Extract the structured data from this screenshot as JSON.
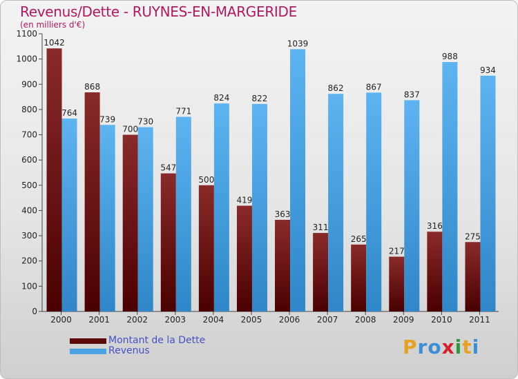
{
  "chart_data": {
    "type": "bar",
    "title": "Revenus/Dette - RUYNES-EN-MARGERIDE",
    "subtitle": "(en milliers d'€)",
    "categories": [
      "2000",
      "2001",
      "2002",
      "2003",
      "2004",
      "2005",
      "2006",
      "2007",
      "2008",
      "2009",
      "2010",
      "2011"
    ],
    "series": [
      {
        "name": "Montant de la Dette",
        "color": "#5a0a0a",
        "values": [
          1042,
          868,
          700,
          547,
          500,
          419,
          363,
          311,
          265,
          217,
          316,
          275
        ]
      },
      {
        "name": "Revenus",
        "color": "#4aa3e2",
        "values": [
          764,
          739,
          730,
          771,
          824,
          822,
          1039,
          862,
          867,
          837,
          988,
          934
        ]
      }
    ],
    "ylim": [
      0,
      1100
    ],
    "yticks": [
      0,
      100,
      200,
      300,
      400,
      500,
      600,
      700,
      800,
      900,
      1000,
      1100
    ],
    "grid": false,
    "legend_position": "bottom-left"
  },
  "logo": {
    "letters": [
      "P",
      "r",
      "o",
      "x",
      "i",
      "t",
      "i"
    ],
    "colors": [
      "#e8a020",
      "#3a8fd6",
      "#3a8fd6",
      "#d4202a",
      "#2a9a3a",
      "#e8a020",
      "#3a8fd6"
    ]
  }
}
